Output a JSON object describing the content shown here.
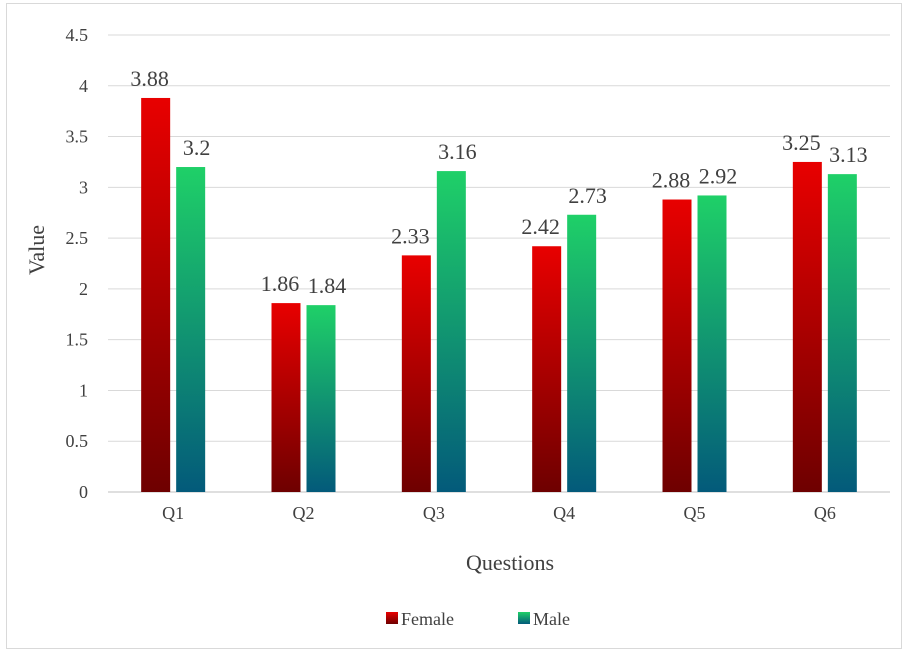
{
  "chart_data": {
    "type": "bar",
    "categories": [
      "Q1",
      "Q2",
      "Q3",
      "Q4",
      "Q5",
      "Q6"
    ],
    "series": [
      {
        "name": "Female",
        "values": [
          3.88,
          1.86,
          2.33,
          2.42,
          2.88,
          3.25
        ],
        "color_top": "#e80000",
        "color_bottom": "#6e0000"
      },
      {
        "name": "Male",
        "values": [
          3.2,
          1.84,
          3.16,
          2.73,
          2.92,
          3.13
        ],
        "color_top": "#1fd068",
        "color_bottom": "#035a7a"
      }
    ],
    "data_labels": {
      "Female": [
        "3.88",
        "1.86",
        "2.33",
        "2.42",
        "2.88",
        "3.25"
      ],
      "Male": [
        "3.2",
        "1.84",
        "3.16",
        "2.73",
        "2.92",
        "3.13"
      ]
    },
    "title": "",
    "xlabel": "Questions",
    "ylabel": "Value",
    "ylim": [
      0,
      4.5
    ],
    "ytick_step": 0.5,
    "yticks": [
      "0",
      "0.5",
      "1",
      "1.5",
      "2",
      "2.5",
      "3",
      "3.5",
      "4",
      "4.5"
    ],
    "grid": true,
    "legend_position": "bottom"
  }
}
